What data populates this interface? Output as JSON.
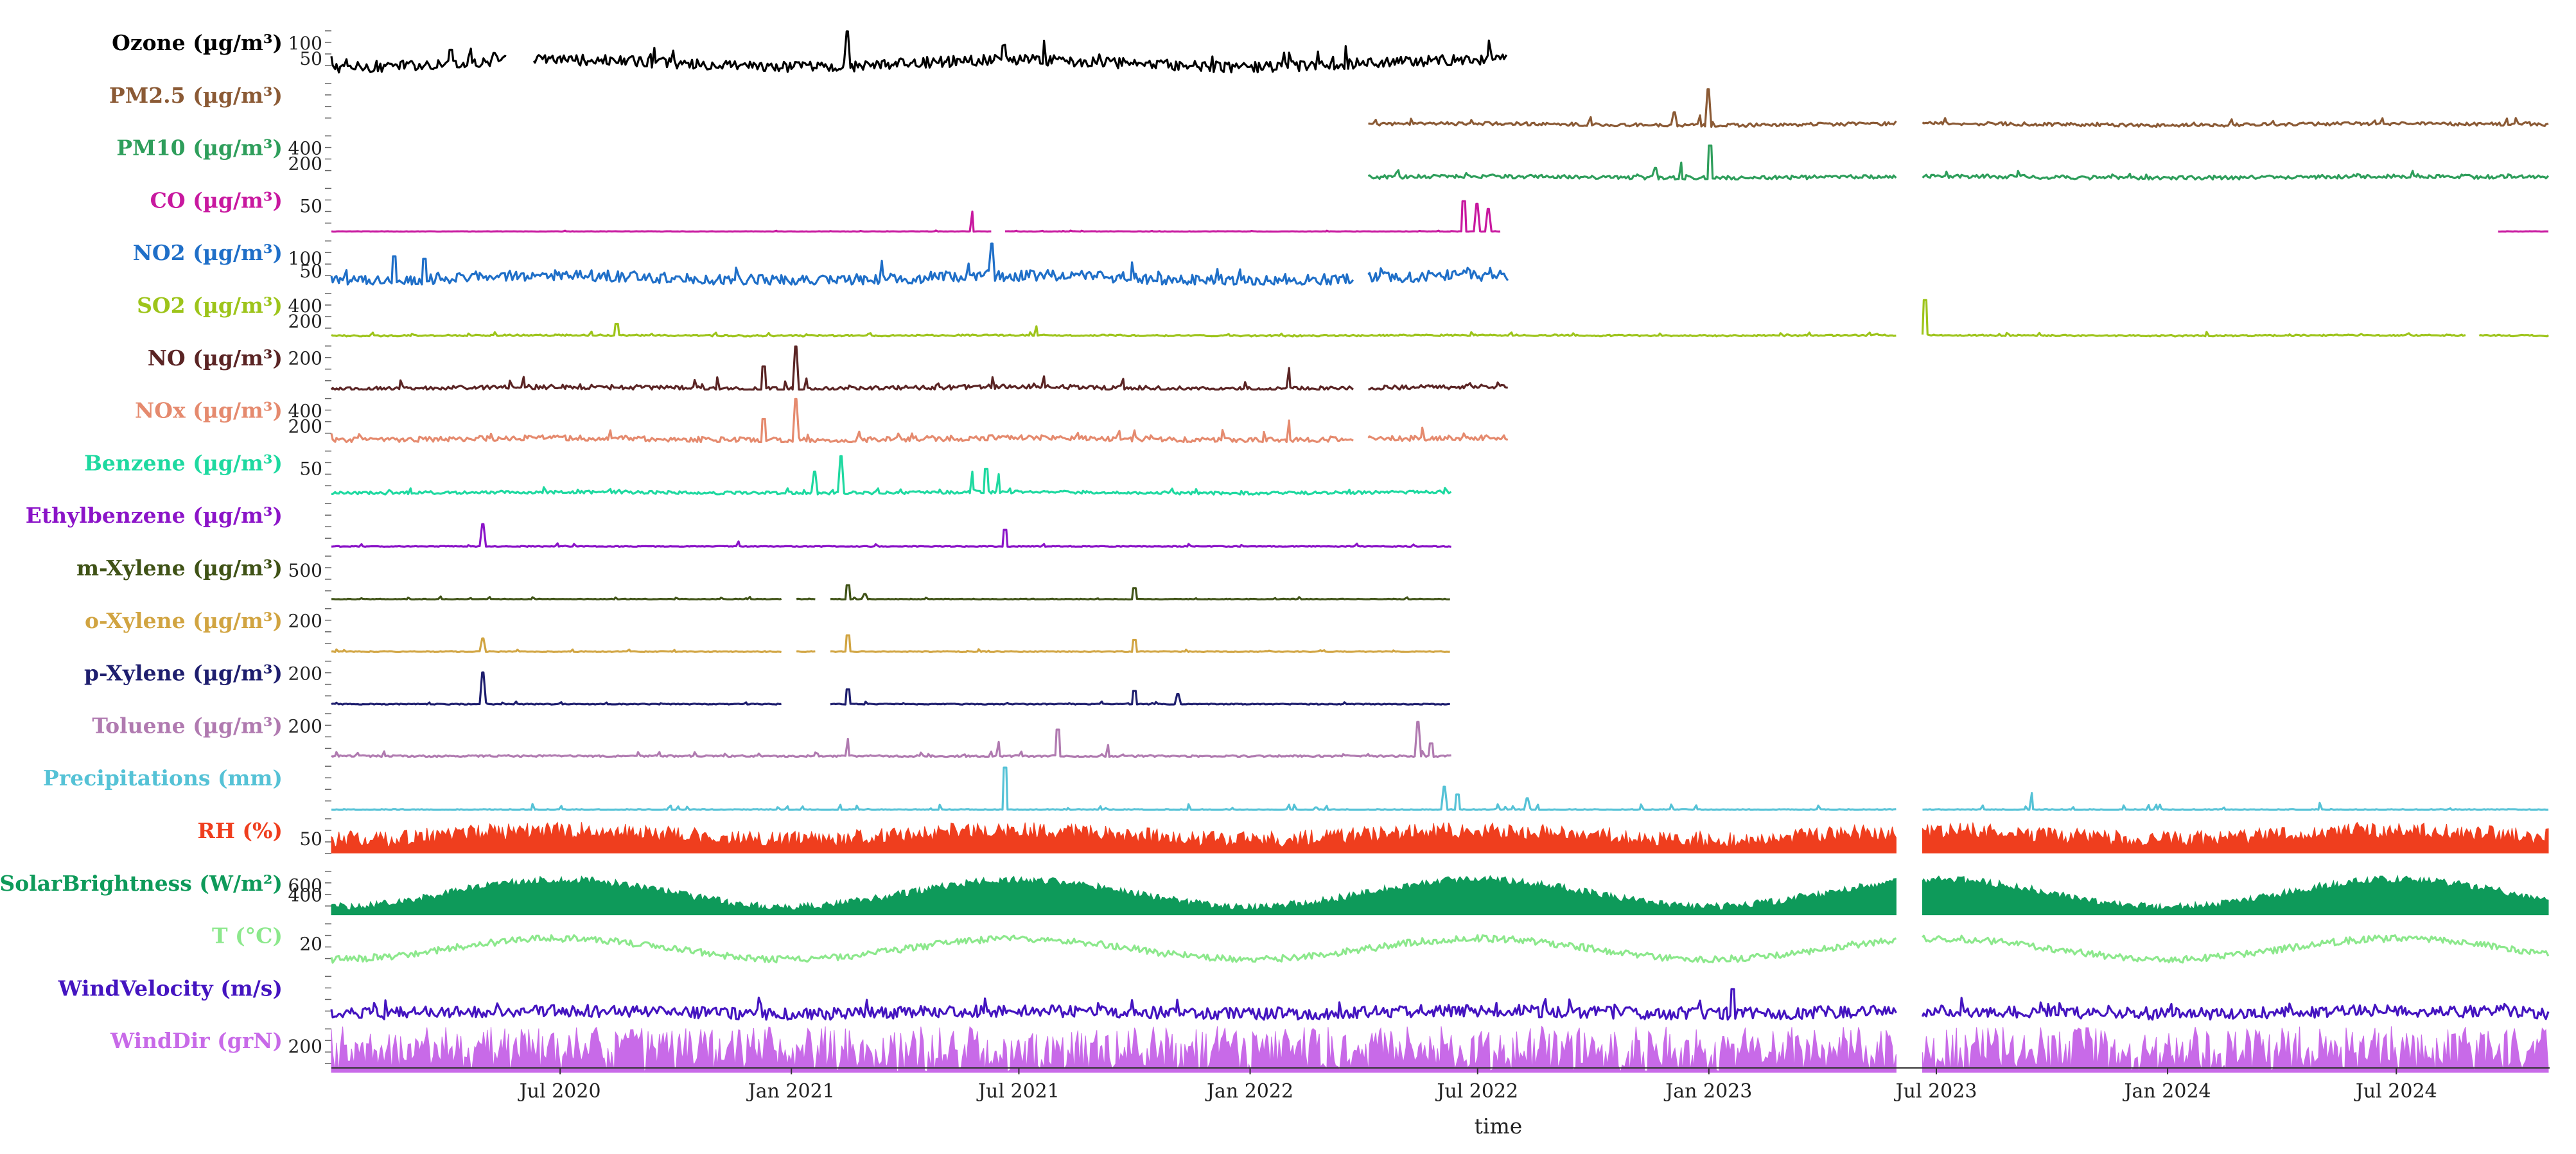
{
  "chart_data": {
    "type": "line",
    "xlabel": "time",
    "xlim": [
      "2020-01-01",
      "2024-10-31"
    ],
    "x_ticks": [
      "Jul 2020",
      "Jan 2021",
      "Jul 2021",
      "Jan 2022",
      "Jul 2022",
      "Jan 2023",
      "Jul 2023",
      "Jan 2024",
      "Jul 2024"
    ],
    "x_tick_dates": [
      "2020-07-01",
      "2021-01-01",
      "2021-07-01",
      "2022-01-01",
      "2022-07-01",
      "2023-01-01",
      "2023-07-01",
      "2024-01-01",
      "2024-07-01"
    ],
    "grid": false,
    "legend": "none",
    "series": [
      {
        "name": "Ozone (µg/m³)",
        "color": "#000000",
        "ymax": 150,
        "ticks": [
          "100",
          "50"
        ],
        "tick_values": [
          100,
          50
        ],
        "base": 35,
        "noise": 18,
        "seasonal": 12,
        "spike": 60,
        "segments": [
          [
            "2020-01-01",
            "2020-05-20"
          ],
          [
            "2020-06-10",
            "2022-07-25"
          ]
        ],
        "peaks": [
          [
            "2021-02-15",
            140
          ],
          [
            "2020-04-05",
            80
          ],
          [
            "2020-05-10",
            70
          ]
        ]
      },
      {
        "name": "PM2.5 (µg/m³)",
        "color": "#8B5A35",
        "ymax": 220,
        "ticks": [],
        "tick_values": [],
        "base": 12,
        "noise": 8,
        "seasonal": 4,
        "spike": 30,
        "segments": [
          [
            "2022-04-05",
            "2023-05-31"
          ],
          [
            "2023-06-20",
            "2024-10-31"
          ]
        ],
        "peaks": [
          [
            "2023-01-01",
            180
          ],
          [
            "2022-12-05",
            70
          ],
          [
            "2022-12-25",
            55
          ]
        ]
      },
      {
        "name": "PM10 (µg/m³)",
        "color": "#2E9E5B",
        "ymax": 600,
        "ticks": [
          "400",
          "200"
        ],
        "tick_values": [
          400,
          200
        ],
        "base": 30,
        "noise": 25,
        "seasonal": 10,
        "spike": 80,
        "segments": [
          [
            "2022-04-05",
            "2023-05-31"
          ],
          [
            "2023-06-20",
            "2024-10-31"
          ]
        ],
        "peaks": [
          [
            "2023-01-02",
            440
          ],
          [
            "2022-12-10",
            220
          ],
          [
            "2022-11-20",
            150
          ]
        ]
      },
      {
        "name": "CO (µg/m³)",
        "color": "#C8189F",
        "ymax": 90,
        "ticks": [
          "50"
        ],
        "tick_values": [
          50
        ],
        "base": 1,
        "noise": 0.4,
        "seasonal": 0,
        "spike": 2,
        "segments": [
          [
            "2020-01-01",
            "2021-06-10"
          ],
          [
            "2021-06-20",
            "2022-07-20"
          ],
          [
            "2024-09-20",
            "2024-10-31"
          ]
        ],
        "peaks": [
          [
            "2021-05-25",
            40
          ],
          [
            "2021-06-18",
            30
          ],
          [
            "2022-06-20",
            60
          ],
          [
            "2022-07-01",
            55
          ],
          [
            "2022-07-10",
            45
          ]
        ]
      },
      {
        "name": "NO2 (µg/m³)",
        "color": "#1F6FC8",
        "ymax": 180,
        "ticks": [
          "100",
          "50"
        ],
        "tick_values": [
          100,
          50
        ],
        "base": 25,
        "noise": 22,
        "seasonal": 10,
        "spike": 60,
        "segments": [
          [
            "2020-01-01",
            "2022-03-25"
          ],
          [
            "2022-04-05",
            "2022-07-25"
          ]
        ],
        "peaks": [
          [
            "2021-06-10",
            160
          ],
          [
            "2020-02-20",
            110
          ],
          [
            "2020-03-15",
            100
          ]
        ]
      },
      {
        "name": "SO2 (µg/m³)",
        "color": "#9DC41A",
        "ymax": 600,
        "ticks": [
          "400",
          "200"
        ],
        "tick_values": [
          400,
          200
        ],
        "base": 20,
        "noise": 10,
        "seasonal": 3,
        "spike": 40,
        "segments": [
          [
            "2020-01-01",
            "2023-05-31"
          ],
          [
            "2023-06-20",
            "2024-08-25"
          ],
          [
            "2024-09-05",
            "2024-10-31"
          ]
        ],
        "peaks": [
          [
            "2023-06-22",
            480
          ],
          [
            "2020-08-15",
            170
          ],
          [
            "2021-07-15",
            140
          ]
        ]
      },
      {
        "name": "NO (µg/m³)",
        "color": "#5A2424",
        "ymax": 300,
        "ticks": [
          "200"
        ],
        "tick_values": [
          200
        ],
        "base": 10,
        "noise": 15,
        "seasonal": 8,
        "spike": 80,
        "segments": [
          [
            "2020-01-01",
            "2022-03-25"
          ],
          [
            "2022-04-05",
            "2022-07-25"
          ]
        ],
        "peaks": [
          [
            "2021-01-05",
            280
          ],
          [
            "2020-12-10",
            150
          ],
          [
            "2022-02-01",
            140
          ]
        ]
      },
      {
        "name": "NOx (µg/m³)",
        "color": "#E58A6E",
        "ymax": 600,
        "ticks": [
          "400",
          "200"
        ],
        "tick_values": [
          400,
          200
        ],
        "base": 40,
        "noise": 35,
        "seasonal": 15,
        "spike": 120,
        "segments": [
          [
            "2020-01-01",
            "2022-03-25"
          ],
          [
            "2022-04-05",
            "2022-07-25"
          ]
        ],
        "peaks": [
          [
            "2021-01-05",
            560
          ],
          [
            "2020-12-10",
            300
          ],
          [
            "2022-02-01",
            280
          ]
        ]
      },
      {
        "name": "Benzene (µg/m³)",
        "color": "#1ED9A0",
        "ymax": 90,
        "ticks": [
          "50"
        ],
        "tick_values": [
          50
        ],
        "base": 4,
        "noise": 3,
        "seasonal": 1,
        "spike": 10,
        "segments": [
          [
            "2020-01-01",
            "2022-06-10"
          ]
        ],
        "peaks": [
          [
            "2021-02-10",
            75
          ],
          [
            "2021-01-20",
            45
          ],
          [
            "2021-05-25",
            45
          ],
          [
            "2021-06-05",
            50
          ],
          [
            "2021-06-15",
            40
          ]
        ]
      },
      {
        "name": "Ethylbenzene (µg/m³)",
        "color": "#8B14C8",
        "ymax": 120,
        "ticks": [],
        "tick_values": [],
        "base": 2,
        "noise": 1,
        "seasonal": 0,
        "spike": 8,
        "segments": [
          [
            "2020-01-01",
            "2022-06-10"
          ]
        ],
        "peaks": [
          [
            "2020-05-01",
            60
          ],
          [
            "2021-06-20",
            45
          ],
          [
            "2020-11-20",
            15
          ]
        ]
      },
      {
        "name": "m-Xylene (µg/m³)",
        "color": "#3F5216",
        "ymax": 800,
        "ticks": [
          "500"
        ],
        "tick_values": [
          500
        ],
        "base": 10,
        "noise": 6,
        "seasonal": 0,
        "spike": 40,
        "segments": [
          [
            "2020-01-01",
            "2020-12-25"
          ],
          [
            "2021-01-05",
            "2021-01-20"
          ],
          [
            "2021-02-01",
            "2022-06-10"
          ]
        ],
        "peaks": [
          [
            "2021-02-15",
            250
          ],
          [
            "2021-03-01",
            100
          ],
          [
            "2021-10-01",
            200
          ]
        ]
      },
      {
        "name": "o-Xylene (µg/m³)",
        "color": "#D1A441",
        "ymax": 300,
        "ticks": [
          "200"
        ],
        "tick_values": [
          200
        ],
        "base": 4,
        "noise": 3,
        "seasonal": 0,
        "spike": 15,
        "segments": [
          [
            "2020-01-01",
            "2020-12-25"
          ],
          [
            "2021-01-05",
            "2021-01-20"
          ],
          [
            "2021-02-01",
            "2022-06-10"
          ]
        ],
        "peaks": [
          [
            "2020-05-01",
            90
          ],
          [
            "2021-02-15",
            110
          ],
          [
            "2021-10-01",
            80
          ]
        ]
      },
      {
        "name": "p-Xylene (µg/m³)",
        "color": "#1E1E6E",
        "ymax": 300,
        "ticks": [
          "200"
        ],
        "tick_values": [
          200
        ],
        "base": 4,
        "noise": 3,
        "seasonal": 0,
        "spike": 15,
        "segments": [
          [
            "2020-01-01",
            "2020-12-25"
          ],
          [
            "2021-02-01",
            "2022-06-10"
          ]
        ],
        "peaks": [
          [
            "2020-05-01",
            210
          ],
          [
            "2021-02-15",
            100
          ],
          [
            "2021-10-01",
            90
          ],
          [
            "2021-11-05",
            70
          ]
        ]
      },
      {
        "name": "Toluene (µg/m³)",
        "color": "#B07AB0",
        "ymax": 300,
        "ticks": [
          "200"
        ],
        "tick_values": [
          200
        ],
        "base": 8,
        "noise": 6,
        "seasonal": 0,
        "spike": 30,
        "segments": [
          [
            "2020-01-01",
            "2022-06-10"
          ]
        ],
        "peaks": [
          [
            "2022-05-15",
            230
          ],
          [
            "2021-08-01",
            180
          ],
          [
            "2021-06-15",
            100
          ],
          [
            "2021-02-15",
            120
          ],
          [
            "2021-09-10",
            80
          ],
          [
            "2022-05-25",
            90
          ]
        ]
      },
      {
        "name": "Precipitations (mm)",
        "color": "#55C2D6",
        "ymax": 60,
        "ticks": [],
        "tick_values": [],
        "base": 0,
        "noise": 1,
        "seasonal": 0,
        "spike": 8,
        "segments": [
          [
            "2020-01-01",
            "2023-05-31"
          ],
          [
            "2023-06-20",
            "2024-10-31"
          ]
        ],
        "peaks": [
          [
            "2021-06-20",
            55
          ],
          [
            "2022-06-05",
            30
          ],
          [
            "2022-06-15",
            20
          ],
          [
            "2023-09-15",
            22
          ],
          [
            "2022-08-10",
            15
          ]
        ]
      },
      {
        "name": "RH (%)",
        "color": "#EF3E1E",
        "ymax": 100,
        "ticks": [
          "50"
        ],
        "tick_values": [
          50
        ],
        "base": 60,
        "noise": 18,
        "seasonal": 10,
        "spike": 5,
        "fill": true,
        "fill_base": 20,
        "segments": [
          [
            "2020-01-01",
            "2023-05-31"
          ],
          [
            "2023-06-20",
            "2024-10-31"
          ]
        ],
        "peaks": []
      },
      {
        "name": "SolarBrightness (W/m²)",
        "color": "#0E9A5A",
        "ymax": 950,
        "ticks": [
          "600",
          "400"
        ],
        "tick_values": [
          600,
          400
        ],
        "base": 450,
        "noise": 80,
        "seasonal": 280,
        "spike": 0,
        "fill": true,
        "fill_base": 0,
        "segments": [
          [
            "2020-01-01",
            "2023-05-31"
          ],
          [
            "2023-06-20",
            "2024-10-31"
          ]
        ],
        "peaks": []
      },
      {
        "name": "T (°C)",
        "color": "#8CE88C",
        "ymax": 40,
        "ticks": [
          "20"
        ],
        "tick_values": [
          20
        ],
        "base": 16,
        "noise": 3,
        "seasonal": 9,
        "spike": 0,
        "segments": [
          [
            "2020-01-01",
            "2023-05-31"
          ],
          [
            "2023-06-20",
            "2024-10-31"
          ]
        ],
        "peaks": []
      },
      {
        "name": "WindVelocity (m/s)",
        "color": "#4414C0",
        "ymax": 12,
        "ticks": [],
        "tick_values": [],
        "base": 2,
        "noise": 1.6,
        "seasonal": 0.4,
        "spike": 3,
        "segments": [
          [
            "2020-01-01",
            "2023-05-31"
          ],
          [
            "2023-06-20",
            "2024-10-31"
          ]
        ],
        "peaks": [
          [
            "2023-01-20",
            8
          ]
        ]
      },
      {
        "name": "WindDir (grN)",
        "color": "#C86AE8",
        "ymax": 360,
        "ticks": [
          "200"
        ],
        "tick_values": [
          200
        ],
        "base": 180,
        "noise": 180,
        "seasonal": 0,
        "spike": 0,
        "fill": true,
        "fill_base": 0,
        "segments": [
          [
            "2020-01-01",
            "2023-05-31"
          ],
          [
            "2023-06-20",
            "2024-10-31"
          ]
        ],
        "peaks": []
      }
    ]
  }
}
